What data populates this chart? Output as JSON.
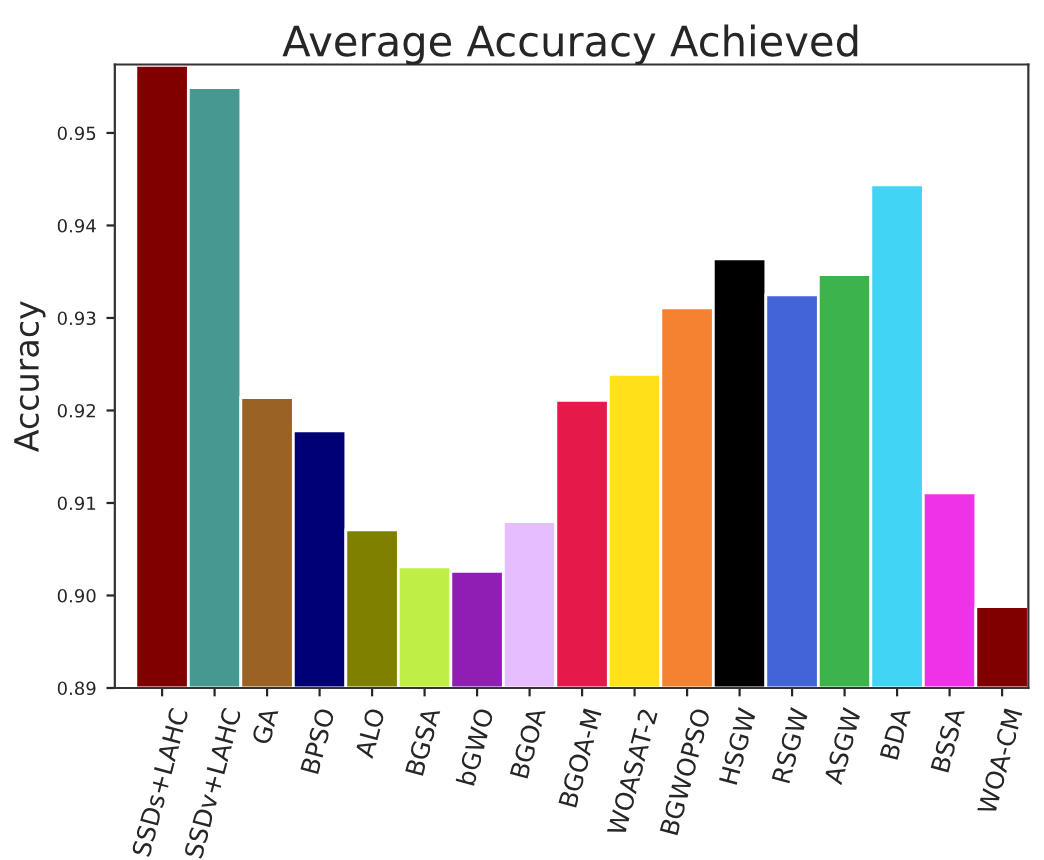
{
  "chart_data": {
    "type": "bar",
    "title": "Average Accuracy Achieved",
    "ylabel": "Accuracy",
    "categories": [
      "SSDs+LAHC",
      "SSDv+LAHC",
      "GA",
      "BPSO",
      "ALO",
      "BGSA",
      "bGWO",
      "BGOA",
      "BGOA-M",
      "WOASAT-2",
      "BGWOPSO",
      "HSGW",
      "RSGW",
      "ASGW",
      "BDA",
      "BSSA",
      "WOA-CM"
    ],
    "values": [
      0.9573,
      0.9549,
      0.9214,
      0.9178,
      0.9071,
      0.9031,
      0.9026,
      0.908,
      0.9211,
      0.9239,
      0.9311,
      0.9364,
      0.9325,
      0.9347,
      0.9444,
      0.9111,
      0.8988
    ],
    "colors": [
      "#800000",
      "#469990",
      "#9a6324",
      "#000075",
      "#808000",
      "#bfef45",
      "#911eb4",
      "#e6beff",
      "#e6194b",
      "#ffe119",
      "#f58231",
      "#000000",
      "#4363d8",
      "#3cb44b",
      "#42d4f4",
      "#f032e6",
      "#800000"
    ],
    "ylim": [
      0.89,
      0.9574
    ],
    "yticks": [
      {
        "value": 0.89,
        "label": "0.89"
      },
      {
        "value": 0.9,
        "label": "0.90"
      },
      0.91,
      0.92,
      0.93,
      0.94,
      0.95
    ],
    "grid": false
  }
}
